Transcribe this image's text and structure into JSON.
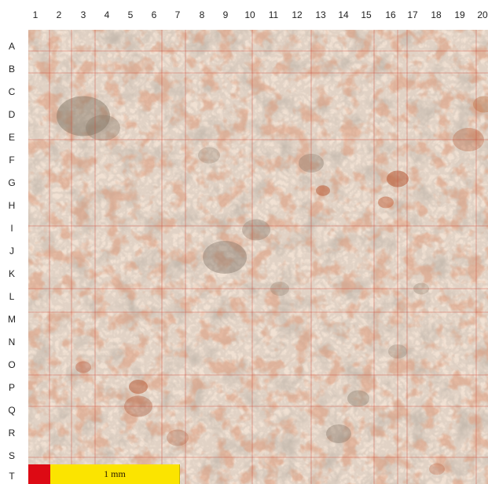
{
  "columns": [
    "1",
    "2",
    "3",
    "4",
    "5",
    "6",
    "7",
    "8",
    "9",
    "10",
    "11",
    "12",
    "13",
    "14",
    "15",
    "16",
    "17",
    "18",
    "19",
    "20"
  ],
  "rows": [
    "A",
    "B",
    "C",
    "D",
    "E",
    "F",
    "G",
    "H",
    "I",
    "J",
    "K",
    "L",
    "M",
    "N",
    "O",
    "P",
    "Q",
    "R",
    "S",
    "T"
  ],
  "scale_bar": {
    "label": "1 mm"
  },
  "colors": {
    "background": "#f1e1d3",
    "grid_line": "#cf4a3a",
    "dark_mineral": "#8a7a68",
    "iron_oxide": "#b5532e",
    "scale_red": "#dd0a14",
    "scale_yellow": "#fbe400"
  }
}
